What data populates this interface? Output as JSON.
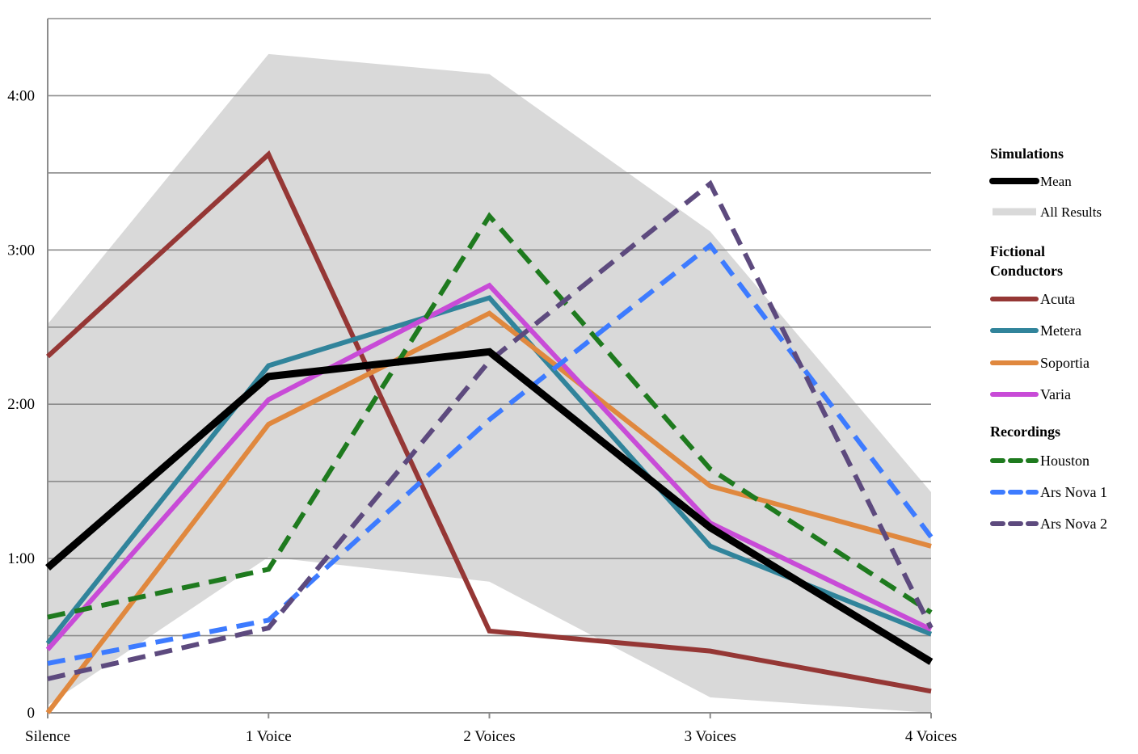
{
  "chart_data": {
    "type": "line",
    "title": "",
    "xlabel": "",
    "ylabel": "",
    "categories": [
      "Silence",
      "1 Voice",
      "2 Voices",
      "3 Voices",
      "4 Voices"
    ],
    "y_unit": "minutes",
    "ylim": [
      0,
      4.5
    ],
    "y_ticks": [
      {
        "value": 0,
        "label": "0"
      },
      {
        "value": 1,
        "label": "1:00"
      },
      {
        "value": 2,
        "label": "2:00"
      },
      {
        "value": 3,
        "label": "3:00"
      },
      {
        "value": 4,
        "label": "4:00"
      }
    ],
    "gridlines": [
      0.5,
      1,
      1.5,
      2,
      2.5,
      3,
      3.5,
      4,
      4.5
    ],
    "grid": true,
    "legend_position": "right",
    "range_band": {
      "name": "All Results",
      "group": "Simulations",
      "color": "#d9d9d9",
      "upper": [
        2.52,
        4.27,
        4.14,
        3.12,
        1.43
      ],
      "lower": [
        0.05,
        1.01,
        0.85,
        0.1,
        0.0
      ]
    },
    "series": [
      {
        "name": "Mean",
        "group": "Simulations",
        "color": "#000000",
        "dashed": false,
        "width": 9,
        "values": [
          0.94,
          2.18,
          2.34,
          1.2,
          0.33
        ]
      },
      {
        "name": "Acuta",
        "group": "Fictional Conductors",
        "color": "#953735",
        "dashed": false,
        "width": 6,
        "values": [
          2.31,
          3.62,
          0.53,
          0.4,
          0.14
        ]
      },
      {
        "name": "Metera",
        "group": "Fictional Conductors",
        "color": "#31849b",
        "dashed": false,
        "width": 6,
        "values": [
          0.45,
          2.25,
          2.69,
          1.08,
          0.51
        ]
      },
      {
        "name": "Soportia",
        "group": "Fictional Conductors",
        "color": "#e0883e",
        "dashed": false,
        "width": 6,
        "values": [
          0.0,
          1.87,
          2.59,
          1.47,
          1.08
        ]
      },
      {
        "name": "Varia",
        "group": "Fictional Conductors",
        "color": "#c84bd7",
        "dashed": false,
        "width": 6,
        "values": [
          0.41,
          2.03,
          2.77,
          1.23,
          0.54
        ]
      },
      {
        "name": "Houston",
        "group": "Recordings",
        "color": "#1e7a1e",
        "dashed": true,
        "width": 6,
        "values": [
          0.62,
          0.93,
          3.22,
          1.58,
          0.65
        ]
      },
      {
        "name": "Ars Nova 1",
        "group": "Recordings",
        "color": "#3d7bff",
        "dashed": true,
        "width": 6,
        "values": [
          0.32,
          0.6,
          1.9,
          3.03,
          1.14
        ]
      },
      {
        "name": "Ars Nova 2",
        "group": "Recordings",
        "color": "#5d4a7e",
        "dashed": true,
        "width": 6,
        "values": [
          0.22,
          0.55,
          2.28,
          3.43,
          0.55
        ]
      }
    ],
    "draw_order": [
      "Acuta",
      "Metera",
      "Soportia",
      "Varia",
      "Houston",
      "Ars Nova 1",
      "Ars Nova 2",
      "Mean"
    ]
  },
  "legend": {
    "groups": [
      {
        "title": "Simulations",
        "entries": [
          {
            "label": "Mean",
            "series": "Mean"
          },
          {
            "label": "All Results",
            "series": "All Results"
          }
        ]
      },
      {
        "title": "Fictional Conductors",
        "title_lines": [
          "Fictional",
          "Conductors"
        ],
        "entries": [
          {
            "label": "Acuta",
            "series": "Acuta"
          },
          {
            "label": "Metera",
            "series": "Metera"
          },
          {
            "label": "Soportia",
            "series": "Soportia"
          },
          {
            "label": "Varia",
            "series": "Varia"
          }
        ]
      },
      {
        "title": "Recordings",
        "entries": [
          {
            "label": "Houston",
            "series": "Houston"
          },
          {
            "label": "Ars Nova 1",
            "series": "Ars Nova 1"
          },
          {
            "label": "Ars Nova 2",
            "series": "Ars Nova 2"
          }
        ]
      }
    ]
  }
}
